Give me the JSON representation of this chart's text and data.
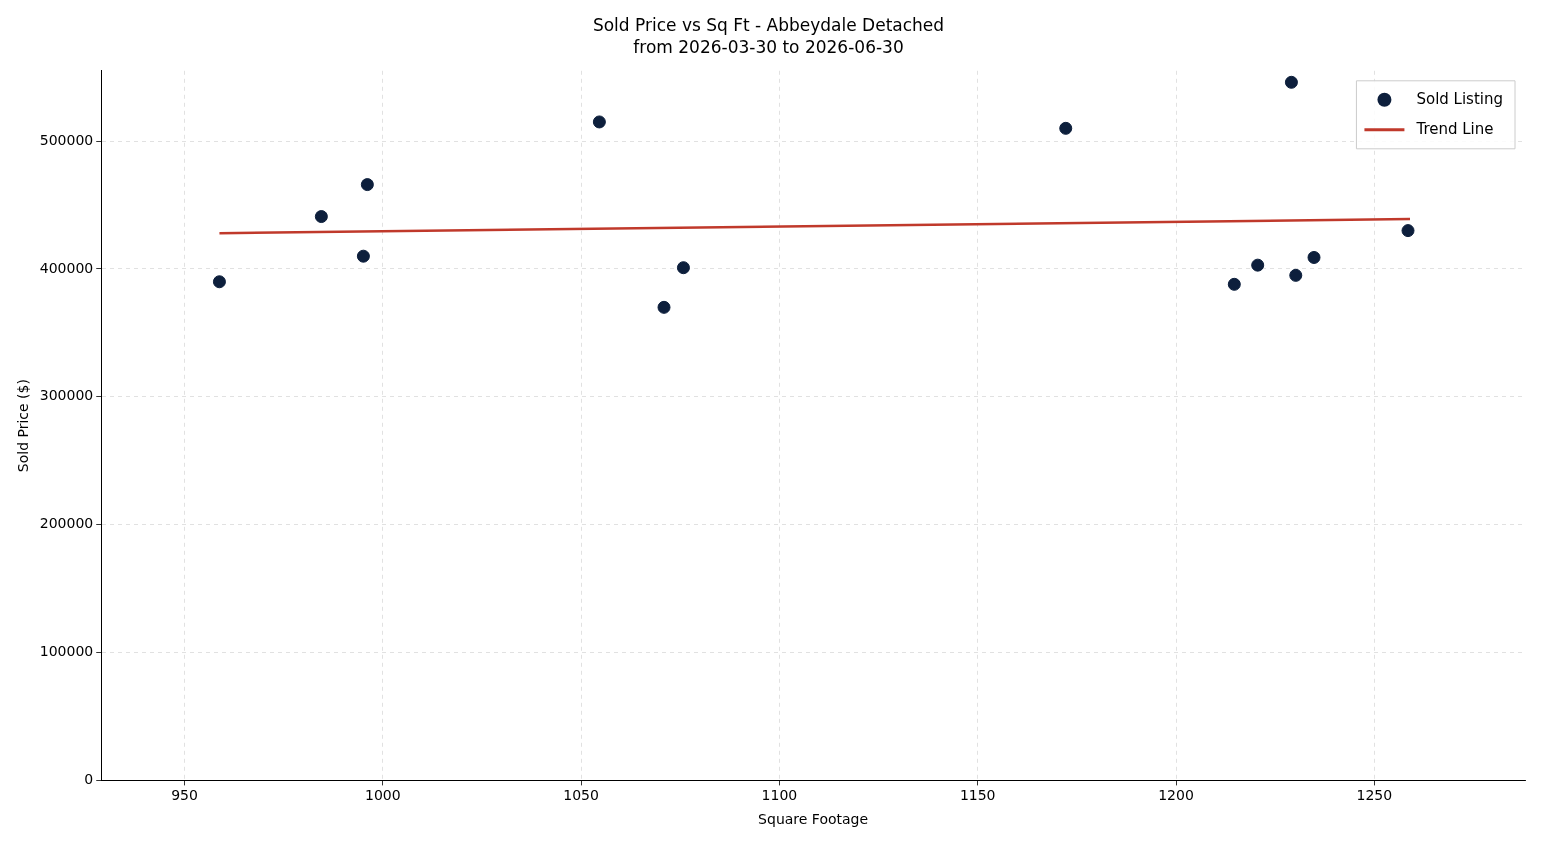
{
  "chart_data": {
    "type": "scatter",
    "title": "Sold Price vs Sq Ft - Abbeydale Detached",
    "subtitle": "from 2026-03-30 to 2026-06-30",
    "xlabel": "Square Footage",
    "ylabel": "Sold Price ($)",
    "series": [
      {
        "name": "Sold Listing",
        "marker": "circle",
        "color": "#0d1f3c",
        "x": [
          958.8,
          984.5,
          995.1,
          996.1,
          1054.6,
          1070.9,
          1075.8,
          1172.2,
          1214.7,
          1220.6,
          1229.1,
          1230.2,
          1234.8,
          1258.5
        ],
        "values": [
          390000,
          441000,
          410000,
          466000,
          515000,
          370000,
          401000,
          510000,
          388000,
          403000,
          546000,
          395000,
          409000,
          430000
        ]
      },
      {
        "name": "Trend Line",
        "type": "line",
        "marker": "none",
        "color": "#c0392b",
        "x": [
          958.8,
          1259
        ],
        "values": [
          428000,
          439000
        ]
      }
    ],
    "xlim": [
      929,
      1288
    ],
    "xticks": [
      950,
      1000,
      1050,
      1100,
      1150,
      1200,
      1250
    ],
    "ylim": [
      0,
      555000
    ],
    "yticks": [
      0,
      100000,
      200000,
      300000,
      400000,
      500000
    ],
    "grid": true,
    "legend": "top right"
  }
}
